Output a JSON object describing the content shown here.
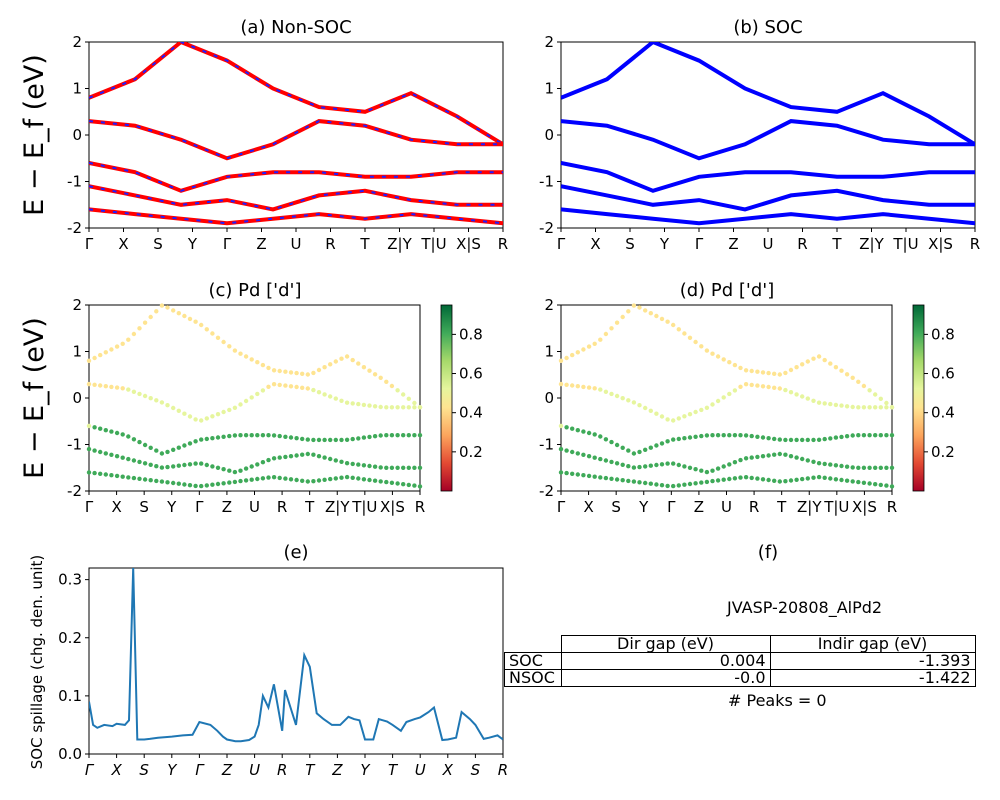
{
  "panels": {
    "a": {
      "title": "(a) Non-SOC"
    },
    "b": {
      "title": "(b) SOC"
    },
    "c": {
      "title": "(c)  Pd ['d']"
    },
    "d": {
      "title": "(d) Pd ['d']"
    },
    "e": {
      "title": "(e)"
    },
    "f": {
      "title": "(f)"
    }
  },
  "band_ylabel": "E − E_f (eV)",
  "kpath_labels_ab": [
    "Γ",
    "X",
    "S",
    "Y",
    "Γ",
    "Z",
    "U",
    "R",
    "T",
    "Z|Y",
    "T|U",
    "X|S",
    "R"
  ],
  "kpath_labels_cd": [
    "Γ",
    "X",
    "S",
    "Y",
    "Γ",
    "Z",
    "U",
    "R",
    "T",
    "Z|Y",
    "T|U",
    "X|S",
    "R"
  ],
  "kpath_labels_e": [
    "Γ",
    "X",
    "S",
    "Y",
    "Γ",
    "Z",
    "U",
    "R",
    "T",
    "Z",
    "Y",
    "T",
    "U",
    "X",
    "S",
    "R"
  ],
  "colorbar_ticks": [
    "0.2",
    "0.4",
    "0.6",
    "0.8"
  ],
  "spillage_ylabel": "SOC spillage (chg. den. unit)",
  "table": {
    "jid": "JVASP-20808_AlPd2",
    "headers": [
      "Dir gap (eV)",
      "Indir gap (eV)"
    ],
    "rows": [
      {
        "label": "SOC",
        "dir": "0.004",
        "indir": "-1.393"
      },
      {
        "label": "NSOC",
        "dir": "-0.0",
        "indir": "-1.422"
      }
    ],
    "peaks": "# Peaks = 0"
  },
  "colors": {
    "nonsoc": "#ff0000",
    "nonsoc_dash": "#1f1fff",
    "soc": "#0000ff",
    "spillage": "#1f77b4"
  },
  "chart_data": [
    {
      "type": "line",
      "panel": "a",
      "title": "(a) Non-SOC",
      "ylabel": "E − E_f (eV)",
      "ylim": [
        -2,
        2
      ],
      "yticks": [
        -2,
        -1,
        0,
        1,
        2
      ],
      "series": [
        {
          "values": [
            0.8,
            1.2,
            2.0,
            1.6,
            1.0,
            0.6,
            0.5,
            0.9,
            0.4,
            -0.2
          ]
        },
        {
          "values": [
            0.3,
            0.2,
            -0.1,
            -0.5,
            -0.2,
            0.3,
            0.2,
            -0.1,
            -0.2,
            -0.2
          ]
        },
        {
          "values": [
            -0.6,
            -0.8,
            -1.2,
            -0.9,
            -0.8,
            -0.8,
            -0.9,
            -0.9,
            -0.8,
            -0.8
          ]
        },
        {
          "values": [
            -1.1,
            -1.3,
            -1.5,
            -1.4,
            -1.6,
            -1.3,
            -1.2,
            -1.4,
            -1.5,
            -1.5
          ]
        },
        {
          "values": [
            -1.6,
            -1.7,
            -1.8,
            -1.9,
            -1.8,
            -1.7,
            -1.8,
            -1.7,
            -1.8,
            -1.9
          ]
        }
      ]
    },
    {
      "type": "line",
      "panel": "b",
      "title": "(b) SOC",
      "ylim": [
        -2,
        2
      ],
      "yticks": [
        -2,
        -1,
        0,
        1,
        2
      ],
      "series": [
        {
          "values": [
            0.8,
            1.2,
            2.0,
            1.6,
            1.0,
            0.6,
            0.5,
            0.9,
            0.4,
            -0.2
          ]
        },
        {
          "values": [
            0.3,
            0.2,
            -0.1,
            -0.5,
            -0.2,
            0.3,
            0.2,
            -0.1,
            -0.2,
            -0.2
          ]
        },
        {
          "values": [
            -0.6,
            -0.8,
            -1.2,
            -0.9,
            -0.8,
            -0.8,
            -0.9,
            -0.9,
            -0.8,
            -0.8
          ]
        },
        {
          "values": [
            -1.1,
            -1.3,
            -1.5,
            -1.4,
            -1.6,
            -1.3,
            -1.2,
            -1.4,
            -1.5,
            -1.5
          ]
        },
        {
          "values": [
            -1.6,
            -1.7,
            -1.8,
            -1.9,
            -1.8,
            -1.7,
            -1.8,
            -1.7,
            -1.8,
            -1.9
          ]
        }
      ]
    },
    {
      "type": "scatter",
      "panel": "c",
      "title": "(c)  Pd ['d']",
      "ylim": [
        -2,
        2
      ],
      "colorbar": [
        0,
        0.95
      ]
    },
    {
      "type": "scatter",
      "panel": "d",
      "title": "(d) Pd ['d']",
      "ylim": [
        -2,
        2
      ],
      "colorbar": [
        0,
        0.95
      ]
    },
    {
      "type": "line",
      "panel": "e",
      "title": "(e)",
      "ylabel": "SOC spillage (chg. den. unit)",
      "ylim": [
        0,
        0.32
      ],
      "yticks": [
        0.0,
        0.1,
        0.2,
        0.3
      ],
      "x": [
        0,
        0.3,
        0.6,
        1.1,
        1.7,
        2.0,
        2.6,
        2.9,
        3.2,
        3.5,
        4.0,
        4.4,
        5.0,
        6.0,
        6.8,
        7.5,
        8.0,
        8.8,
        9.3,
        9.7,
        10.0,
        10.4,
        10.6,
        11.0,
        11.6,
        12.0,
        12.3,
        12.6,
        13.0,
        13.4,
        14.0,
        14.2,
        14.6,
        15.0,
        15.6,
        16.0,
        16.5,
        17.0,
        17.6,
        18.2,
        18.8,
        19.2,
        19.6,
        20.0,
        20.6,
        21.0,
        21.6,
        22.0,
        22.6,
        23.0,
        23.6,
        24.0,
        24.6,
        25.0,
        25.6,
        26.0,
        26.6,
        27.0,
        27.6,
        28.0,
        28.6,
        29.0,
        29.6,
        30.0
      ],
      "values": [
        0.09,
        0.05,
        0.045,
        0.05,
        0.048,
        0.052,
        0.05,
        0.058,
        0.32,
        0.025,
        0.025,
        0.026,
        0.028,
        0.03,
        0.032,
        0.033,
        0.055,
        0.05,
        0.04,
        0.03,
        0.025,
        0.023,
        0.022,
        0.022,
        0.024,
        0.03,
        0.05,
        0.1,
        0.08,
        0.12,
        0.04,
        0.11,
        0.08,
        0.05,
        0.17,
        0.15,
        0.07,
        0.06,
        0.05,
        0.05,
        0.064,
        0.06,
        0.058,
        0.025,
        0.025,
        0.06,
        0.056,
        0.05,
        0.04,
        0.055,
        0.06,
        0.063,
        0.072,
        0.08,
        0.024,
        0.025,
        0.028,
        0.072,
        0.06,
        0.05,
        0.026,
        0.028,
        0.032,
        0.025
      ]
    }
  ]
}
